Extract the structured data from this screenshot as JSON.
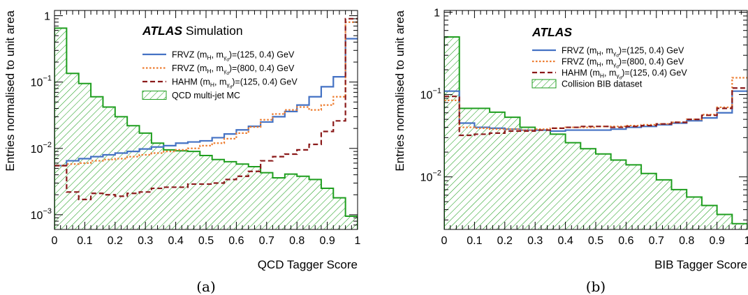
{
  "chart_data": [
    {
      "type": "histogram",
      "panel_label": "(a)",
      "xlabel": "QCD Tagger Score",
      "ylabel": "Entries normalised to unit area",
      "xlim": [
        0,
        1
      ],
      "ylim": [
        0.0006,
        1.2
      ],
      "yscale": "log",
      "x_ticks": [
        "0",
        "0.1",
        "0.2",
        "0.3",
        "0.4",
        "0.5",
        "0.6",
        "0.7",
        "0.8",
        "0.9",
        "1"
      ],
      "y_ticks": [
        {
          "value": 0.001,
          "base": "10",
          "exp": "−3"
        },
        {
          "value": 0.01,
          "base": "10",
          "exp": "−2"
        },
        {
          "value": 0.1,
          "base": "10",
          "exp": "−1"
        },
        {
          "value": 1,
          "base": "1",
          "exp": ""
        }
      ],
      "legend_position": "top-center",
      "header": {
        "bold": "ATLAS",
        "rest": " Simulation"
      },
      "bin_edges": [
        0,
        0.04,
        0.08,
        0.12,
        0.16,
        0.2,
        0.24,
        0.28,
        0.32,
        0.36,
        0.4,
        0.44,
        0.48,
        0.52,
        0.56,
        0.6,
        0.64,
        0.68,
        0.72,
        0.76,
        0.8,
        0.84,
        0.88,
        0.92,
        0.96,
        1.0
      ],
      "series": [
        {
          "legend": {
            "main": "FRVZ (m",
            "s1": "H",
            "mid": ", m",
            "s2": "γ",
            "s3": "d",
            "tail": ")=(125, 0.4) GeV"
          },
          "color": "#4472c4",
          "style": "solid",
          "kind": "line",
          "values": [
            0.0055,
            0.0065,
            0.007,
            0.0075,
            0.008,
            0.0085,
            0.009,
            0.0098,
            0.0105,
            0.011,
            0.012,
            0.0125,
            0.013,
            0.0145,
            0.0165,
            0.019,
            0.0215,
            0.025,
            0.03,
            0.036,
            0.045,
            0.06,
            0.085,
            0.12,
            0.45
          ]
        },
        {
          "legend": {
            "main": "FRVZ (m",
            "s1": "H",
            "mid": ", m",
            "s2": "γ",
            "s3": "d",
            "tail": ")=(800, 0.4) GeV"
          },
          "color": "#ed7d31",
          "style": "dotted",
          "kind": "line",
          "values": [
            0.0055,
            0.0058,
            0.006,
            0.0065,
            0.0068,
            0.007,
            0.0075,
            0.008,
            0.0085,
            0.009,
            0.0095,
            0.01,
            0.011,
            0.012,
            0.014,
            0.017,
            0.021,
            0.027,
            0.033,
            0.038,
            0.042,
            0.038,
            0.045,
            0.06,
            0.8
          ]
        },
        {
          "legend": {
            "main": "HAHM (m",
            "s1": "H",
            "mid": ", m",
            "s2": "γ",
            "s3": "d",
            "tail": ")=(125, 0.4) GeV"
          },
          "color": "#8b1a1a",
          "style": "dashed",
          "kind": "line",
          "values": [
            0.0055,
            0.0022,
            0.0017,
            0.0021,
            0.002,
            0.0019,
            0.0021,
            0.0022,
            0.0025,
            0.0026,
            0.0026,
            0.0029,
            0.0029,
            0.003,
            0.0034,
            0.0038,
            0.0045,
            0.0065,
            0.0075,
            0.0082,
            0.0095,
            0.0115,
            0.018,
            0.026,
            0.9
          ]
        },
        {
          "legend": {
            "main": "QCD multi-jet MC",
            "s1": "",
            "mid": "",
            "s2": "",
            "s3": "",
            "tail": ""
          },
          "color": "#1e9e1e",
          "style": "solid",
          "kind": "hatched",
          "values": [
            0.65,
            0.135,
            0.095,
            0.06,
            0.042,
            0.03,
            0.022,
            0.017,
            0.012,
            0.0095,
            0.0092,
            0.009,
            0.0078,
            0.0068,
            0.0063,
            0.0058,
            0.0053,
            0.0043,
            0.0036,
            0.0041,
            0.0038,
            0.0034,
            0.0025,
            0.0018,
            0.00095
          ]
        }
      ]
    },
    {
      "type": "histogram",
      "panel_label": "(b)",
      "xlabel": "BIB Tagger Score",
      "ylabel": "Entries normalised to unit area",
      "xlim": [
        0,
        1
      ],
      "ylim": [
        0.0023,
        1.05
      ],
      "yscale": "log",
      "x_ticks": [
        "0",
        "0.1",
        "0.2",
        "0.3",
        "0.4",
        "0.5",
        "0.6",
        "0.7",
        "0.8",
        "0.9",
        "1"
      ],
      "y_ticks": [
        {
          "value": 0.01,
          "base": "10",
          "exp": "−2"
        },
        {
          "value": 0.1,
          "base": "10",
          "exp": "−1"
        },
        {
          "value": 1,
          "base": "1",
          "exp": ""
        }
      ],
      "legend_position": "top-center",
      "header": {
        "bold": "ATLAS",
        "rest": ""
      },
      "bin_edges": [
        0,
        0.05,
        0.1,
        0.15,
        0.2,
        0.25,
        0.3,
        0.35,
        0.4,
        0.45,
        0.5,
        0.55,
        0.6,
        0.65,
        0.7,
        0.75,
        0.8,
        0.85,
        0.9,
        0.95,
        1.0
      ],
      "series": [
        {
          "legend": {
            "main": "FRVZ (m",
            "s1": "H",
            "mid": ", m",
            "s2": "γ",
            "s3": "d",
            "tail": ")=(125, 0.4) GeV"
          },
          "color": "#4472c4",
          "style": "solid",
          "kind": "line",
          "values": [
            0.11,
            0.045,
            0.04,
            0.039,
            0.038,
            0.037,
            0.037,
            0.036,
            0.037,
            0.037,
            0.037,
            0.038,
            0.04,
            0.041,
            0.043,
            0.045,
            0.048,
            0.052,
            0.06,
            0.11
          ]
        },
        {
          "legend": {
            "main": "FRVZ (m",
            "s1": "H",
            "mid": ", m",
            "s2": "γ",
            "s3": "d",
            "tail": ")=(800, 0.4) GeV"
          },
          "color": "#ed7d31",
          "style": "dotted",
          "kind": "line",
          "values": [
            0.085,
            0.04,
            0.039,
            0.038,
            0.038,
            0.037,
            0.038,
            0.039,
            0.04,
            0.04,
            0.041,
            0.041,
            0.042,
            0.043,
            0.044,
            0.046,
            0.05,
            0.057,
            0.07,
            0.16
          ]
        },
        {
          "legend": {
            "main": "HAHM (m",
            "s1": "H",
            "mid": ", m",
            "s2": "γ",
            "s3": "d",
            "tail": ")=(125, 0.4) GeV"
          },
          "color": "#8b1a1a",
          "style": "dashed",
          "kind": "line",
          "values": [
            0.095,
            0.032,
            0.033,
            0.034,
            0.036,
            0.036,
            0.037,
            0.039,
            0.04,
            0.041,
            0.041,
            0.04,
            0.041,
            0.042,
            0.044,
            0.046,
            0.05,
            0.056,
            0.068,
            0.12
          ]
        },
        {
          "legend": {
            "main": "Collision BIB dataset",
            "s1": "",
            "mid": "",
            "s2": "",
            "s3": "",
            "tail": ""
          },
          "color": "#1e9e1e",
          "style": "solid",
          "kind": "hatched",
          "values": [
            0.5,
            0.068,
            0.068,
            0.061,
            0.053,
            0.04,
            0.037,
            0.033,
            0.026,
            0.022,
            0.019,
            0.016,
            0.014,
            0.011,
            0.0092,
            0.007,
            0.0057,
            0.0045,
            0.0035,
            0.0027
          ]
        }
      ]
    }
  ]
}
